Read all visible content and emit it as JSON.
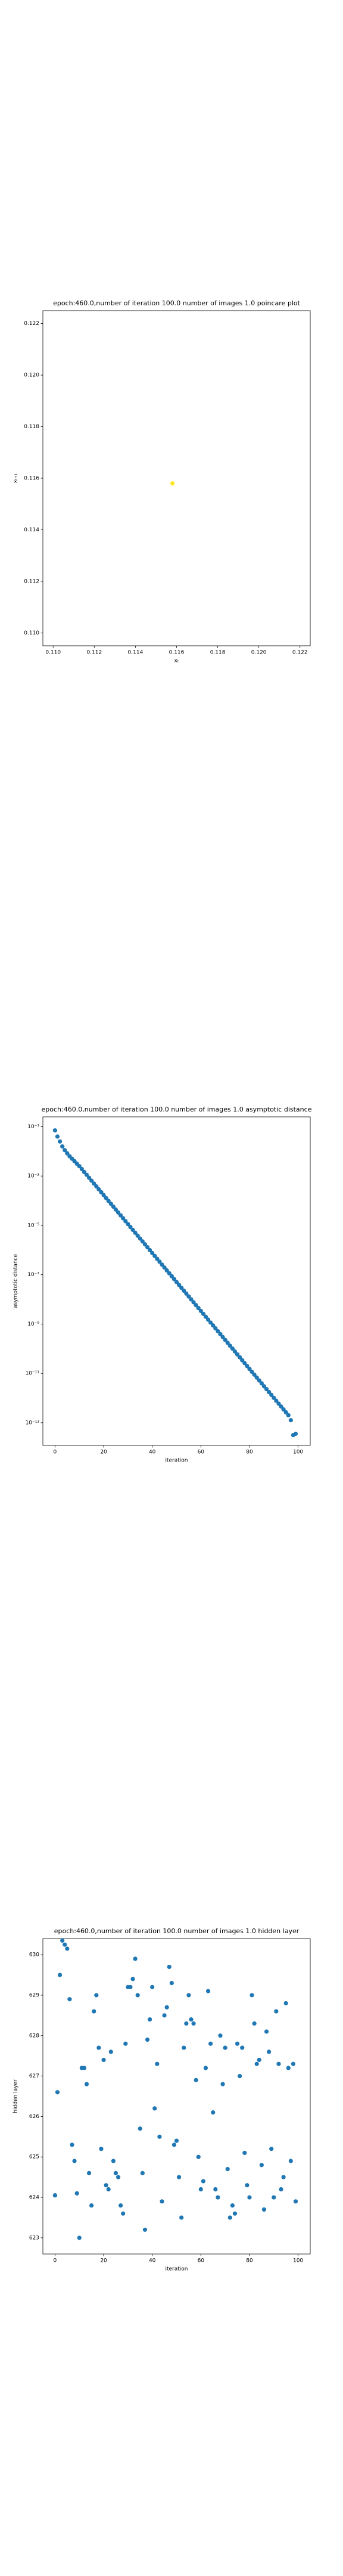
{
  "chart_data": [
    {
      "type": "scatter",
      "title": "epoch:460.0,number of iteration 100.0 number of images 1.0 poincare plot",
      "xlabel": "xₜ",
      "ylabel": "xₜ₊₁",
      "x": [
        0.1158
      ],
      "y": [
        0.1158
      ],
      "color": "#fde725",
      "xlim": [
        0.1095,
        0.1225
      ],
      "ylim": [
        0.1095,
        0.1225
      ],
      "xticks": [
        {
          "value": 0.11,
          "label": "0.110"
        },
        {
          "value": 0.112,
          "label": "0.112"
        },
        {
          "value": 0.114,
          "label": "0.114"
        },
        {
          "value": 0.116,
          "label": "0.116"
        },
        {
          "value": 0.118,
          "label": "0.118"
        },
        {
          "value": 0.12,
          "label": "0.120"
        },
        {
          "value": 0.122,
          "label": "0.122"
        }
      ],
      "yticks": [
        {
          "value": 0.11,
          "label": "0.110"
        },
        {
          "value": 0.112,
          "label": "0.112"
        },
        {
          "value": 0.114,
          "label": "0.114"
        },
        {
          "value": 0.116,
          "label": "0.116"
        },
        {
          "value": 0.118,
          "label": "0.118"
        },
        {
          "value": 0.12,
          "label": "0.120"
        },
        {
          "value": 0.122,
          "label": "0.122"
        }
      ]
    },
    {
      "type": "scatter",
      "title": "epoch:460.0,number of iteration 100.0  number of images 1.0 asymptotic distance",
      "xlabel": "iteration",
      "ylabel": "asymptotic distance",
      "yscale": "log",
      "color": "#1f77b4",
      "x": [
        0,
        1,
        2,
        3,
        4,
        5,
        6,
        7,
        8,
        9,
        10,
        11,
        12,
        13,
        14,
        15,
        16,
        17,
        18,
        19,
        20,
        21,
        22,
        23,
        24,
        25,
        26,
        27,
        28,
        29,
        30,
        31,
        32,
        33,
        34,
        35,
        36,
        37,
        38,
        39,
        40,
        41,
        42,
        43,
        44,
        45,
        46,
        47,
        48,
        49,
        50,
        51,
        52,
        53,
        54,
        55,
        56,
        57,
        58,
        59,
        60,
        61,
        62,
        63,
        64,
        65,
        66,
        67,
        68,
        69,
        70,
        71,
        72,
        73,
        74,
        75,
        76,
        77,
        78,
        79,
        80,
        81,
        82,
        83,
        84,
        85,
        86,
        87,
        88,
        89,
        90,
        91,
        92,
        93,
        94,
        95,
        96,
        97,
        98,
        99
      ],
      "y": [
        0.0708,
        0.0398,
        0.0251,
        0.0158,
        0.0112,
        0.00832,
        0.00631,
        0.00501,
        0.00398,
        0.00316,
        0.00251,
        0.00192,
        0.00146,
        0.00112,
        0.000852,
        0.00065,
        0.000496,
        0.000379,
        0.000289,
        0.00022,
        0.000168,
        0.000128,
        9.8e-05,
        7.48e-05,
        5.71e-05,
        4.36e-05,
        3.32e-05,
        2.54e-05,
        1.94e-05,
        1.48e-05,
        1.13e-05,
        8.6e-06,
        6.57e-06,
        5.01e-06,
        3.82e-06,
        2.92e-06,
        2.23e-06,
        1.7e-06,
        1.3e-06,
        9.89e-07,
        7.55e-07,
        5.76e-07,
        4.4e-07,
        3.36e-07,
        2.56e-07,
        1.95e-07,
        1.49e-07,
        1.14e-07,
        8.69e-08,
        6.63e-08,
        5.06e-08,
        3.86e-08,
        2.95e-08,
        2.25e-08,
        1.72e-08,
        1.31e-08,
        9.99e-09,
        7.62e-09,
        5.82e-09,
        4.44e-09,
        3.39e-09,
        2.59e-09,
        1.97e-09,
        1.51e-09,
        1.15e-09,
        8.77e-10,
        6.69e-10,
        5.11e-10,
        3.9e-10,
        2.97e-10,
        2.27e-10,
        1.73e-10,
        1.32e-10,
        1.01e-10,
        7.7e-11,
        5.87e-11,
        4.48e-11,
        3.42e-11,
        2.61e-11,
        1.99e-11,
        1.52e-11,
        1.16e-11,
        8.85e-12,
        6.76e-12,
        5.16e-12,
        3.94e-12,
        3e-12,
        2.29e-12,
        1.75e-12,
        1.34e-12,
        1.02e-12,
        7.77e-13,
        5.93e-13,
        4.53e-13,
        3.45e-13,
        2.64e-13,
        2.01e-13,
        1.26e-13,
        3.16e-14,
        3.55e-14
      ],
      "xlim": [
        -5,
        105
      ],
      "ylim": [
        1.2e-14,
        0.25
      ],
      "xticks": [
        0,
        20,
        40,
        60,
        80,
        100
      ],
      "yticks": [
        {
          "value": 0.1,
          "label": "10⁻¹"
        },
        {
          "value": 0.001,
          "label": "10⁻³"
        },
        {
          "value": 1e-05,
          "label": "10⁻⁵"
        },
        {
          "value": 1e-07,
          "label": "10⁻⁷"
        },
        {
          "value": 1e-09,
          "label": "10⁻⁹"
        },
        {
          "value": 1e-11,
          "label": "10⁻¹¹"
        },
        {
          "value": 1e-13,
          "label": "10⁻¹³"
        }
      ]
    },
    {
      "type": "scatter",
      "title": "epoch:460.0,number of iteration 100.0  number of images 1.0 hidden layer",
      "xlabel": "iteration",
      "ylabel": "hidden layer",
      "color": "#1f77b4",
      "x": [
        0,
        1,
        2,
        3,
        4,
        5,
        6,
        7,
        8,
        9,
        10,
        11,
        12,
        13,
        14,
        15,
        16,
        17,
        18,
        19,
        20,
        21,
        22,
        23,
        24,
        25,
        26,
        27,
        28,
        29,
        30,
        31,
        32,
        33,
        34,
        35,
        36,
        37,
        38,
        39,
        40,
        41,
        42,
        43,
        44,
        45,
        46,
        47,
        48,
        49,
        50,
        51,
        52,
        53,
        54,
        55,
        56,
        57,
        58,
        59,
        60,
        61,
        62,
        63,
        64,
        65,
        66,
        67,
        68,
        69,
        70,
        71,
        72,
        73,
        74,
        75,
        76,
        77,
        78,
        79,
        80,
        81,
        82,
        83,
        84,
        85,
        86,
        87,
        88,
        89,
        90,
        91,
        92,
        93,
        94,
        95,
        96,
        97,
        98,
        99
      ],
      "y": [
        624.05,
        626.6,
        629.5,
        630.35,
        630.25,
        630.15,
        628.9,
        625.3,
        624.9,
        624.1,
        623.0,
        627.2,
        627.2,
        626.8,
        624.6,
        623.8,
        628.6,
        629.0,
        627.7,
        625.2,
        627.4,
        624.3,
        624.2,
        627.6,
        624.9,
        624.6,
        624.5,
        623.8,
        623.6,
        627.8,
        629.2,
        629.2,
        629.4,
        629.9,
        629.0,
        625.7,
        624.6,
        623.2,
        627.9,
        628.4,
        629.2,
        626.2,
        627.3,
        625.5,
        623.9,
        628.5,
        628.7,
        629.7,
        629.3,
        625.3,
        625.4,
        624.5,
        623.5,
        627.7,
        628.3,
        629.0,
        628.4,
        628.3,
        626.9,
        625.0,
        624.2,
        624.4,
        627.2,
        629.1,
        627.8,
        626.1,
        624.2,
        624.0,
        628.0,
        626.8,
        627.7,
        624.7,
        623.5,
        623.8,
        623.6,
        627.8,
        627.0,
        627.7,
        625.1,
        624.3,
        624.0,
        629.0,
        628.3,
        627.3,
        627.4,
        624.8,
        623.7,
        628.1,
        627.6,
        625.2,
        624.0,
        628.6,
        627.3,
        624.2,
        624.5,
        628.8,
        627.2,
        624.9,
        627.3,
        623.9
      ],
      "xlim": [
        -5,
        105
      ],
      "ylim": [
        622.6,
        630.4
      ],
      "xticks": [
        0,
        20,
        40,
        60,
        80,
        100
      ],
      "yticks": [
        623,
        624,
        625,
        626,
        627,
        628,
        629,
        630
      ]
    }
  ]
}
